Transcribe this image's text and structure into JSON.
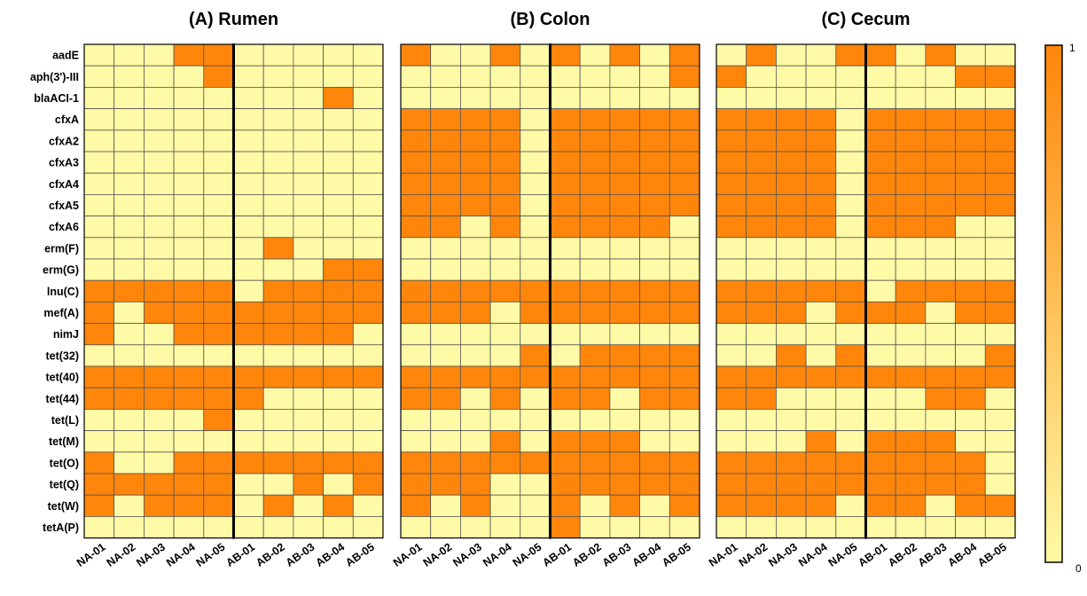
{
  "chart_data": {
    "type": "heatmap",
    "value_range": [
      0,
      1
    ],
    "colors": {
      "low": "#FFFAA5",
      "high": "#FF860A",
      "grid": "#555555",
      "divider": "#000000"
    },
    "colorbar": {
      "min_label": "0",
      "max_label": "1"
    },
    "genes": [
      "aadE",
      "aph(3')-III",
      "blaACI-1",
      "cfxA",
      "cfxA2",
      "cfxA3",
      "cfxA4",
      "cfxA5",
      "cfxA6",
      "erm(F)",
      "erm(G)",
      "lnu(C)",
      "mef(A)",
      "nimJ",
      "tet(32)",
      "tet(40)",
      "tet(44)",
      "tet(L)",
      "tet(M)",
      "tet(O)",
      "tet(Q)",
      "tet(W)",
      "tetA(P)"
    ],
    "samples": [
      "NA-01",
      "NA-02",
      "NA-03",
      "NA-04",
      "NA-05",
      "AB-01",
      "AB-02",
      "AB-03",
      "AB-04",
      "AB-05"
    ],
    "panels": [
      {
        "title": "(A) Rumen",
        "matrix": [
          [
            0,
            0,
            0,
            1,
            1,
            0,
            0,
            0,
            0,
            0
          ],
          [
            0,
            0,
            0,
            0,
            1,
            0,
            0,
            0,
            0,
            0
          ],
          [
            0,
            0,
            0,
            0,
            0,
            0,
            0,
            0,
            1,
            0
          ],
          [
            0,
            0,
            0,
            0,
            0,
            0,
            0,
            0,
            0,
            0
          ],
          [
            0,
            0,
            0,
            0,
            0,
            0,
            0,
            0,
            0,
            0
          ],
          [
            0,
            0,
            0,
            0,
            0,
            0,
            0,
            0,
            0,
            0
          ],
          [
            0,
            0,
            0,
            0,
            0,
            0,
            0,
            0,
            0,
            0
          ],
          [
            0,
            0,
            0,
            0,
            0,
            0,
            0,
            0,
            0,
            0
          ],
          [
            0,
            0,
            0,
            0,
            0,
            0,
            0,
            0,
            0,
            0
          ],
          [
            0,
            0,
            0,
            0,
            0,
            0,
            1,
            0,
            0,
            0
          ],
          [
            0,
            0,
            0,
            0,
            0,
            0,
            0,
            0,
            1,
            1
          ],
          [
            1,
            1,
            1,
            1,
            1,
            0,
            1,
            1,
            1,
            1
          ],
          [
            1,
            0,
            1,
            1,
            1,
            1,
            1,
            1,
            1,
            1
          ],
          [
            1,
            0,
            0,
            1,
            1,
            1,
            1,
            1,
            1,
            0
          ],
          [
            0,
            0,
            0,
            0,
            0,
            0,
            0,
            0,
            0,
            0
          ],
          [
            1,
            1,
            1,
            1,
            1,
            1,
            1,
            1,
            1,
            1
          ],
          [
            1,
            1,
            1,
            1,
            1,
            1,
            0,
            0,
            0,
            0
          ],
          [
            0,
            0,
            0,
            0,
            1,
            0,
            0,
            0,
            0,
            0
          ],
          [
            0,
            0,
            0,
            0,
            0,
            0,
            0,
            0,
            0,
            0
          ],
          [
            1,
            0,
            0,
            1,
            1,
            1,
            1,
            1,
            1,
            1
          ],
          [
            1,
            1,
            1,
            1,
            1,
            0,
            0,
            1,
            0,
            1
          ],
          [
            1,
            0,
            1,
            1,
            1,
            0,
            1,
            0,
            1,
            0
          ],
          [
            0,
            0,
            0,
            0,
            0,
            0,
            0,
            0,
            0,
            0
          ]
        ]
      },
      {
        "title": "(B) Colon",
        "matrix": [
          [
            1,
            0,
            0,
            1,
            0,
            1,
            0,
            1,
            0,
            1
          ],
          [
            0,
            0,
            0,
            0,
            0,
            0,
            0,
            0,
            0,
            1
          ],
          [
            0,
            0,
            0,
            0,
            0,
            0,
            0,
            0,
            0,
            0
          ],
          [
            1,
            1,
            1,
            1,
            0,
            1,
            1,
            1,
            1,
            1
          ],
          [
            1,
            1,
            1,
            1,
            0,
            1,
            1,
            1,
            1,
            1
          ],
          [
            1,
            1,
            1,
            1,
            0,
            1,
            1,
            1,
            1,
            1
          ],
          [
            1,
            1,
            1,
            1,
            0,
            1,
            1,
            1,
            1,
            1
          ],
          [
            1,
            1,
            1,
            1,
            0,
            1,
            1,
            1,
            1,
            1
          ],
          [
            1,
            1,
            0,
            1,
            0,
            1,
            1,
            1,
            1,
            0
          ],
          [
            0,
            0,
            0,
            0,
            0,
            0,
            0,
            0,
            0,
            0
          ],
          [
            0,
            0,
            0,
            0,
            0,
            0,
            0,
            0,
            0,
            0
          ],
          [
            1,
            1,
            1,
            1,
            1,
            1,
            1,
            1,
            1,
            1
          ],
          [
            1,
            1,
            1,
            0,
            1,
            1,
            1,
            1,
            1,
            1
          ],
          [
            0,
            0,
            0,
            0,
            0,
            0,
            0,
            0,
            0,
            0
          ],
          [
            0,
            0,
            0,
            0,
            1,
            0,
            1,
            1,
            1,
            1
          ],
          [
            1,
            1,
            1,
            1,
            1,
            1,
            1,
            1,
            1,
            1
          ],
          [
            1,
            1,
            0,
            1,
            0,
            1,
            1,
            0,
            1,
            1
          ],
          [
            0,
            0,
            0,
            0,
            0,
            0,
            0,
            0,
            0,
            0
          ],
          [
            0,
            0,
            0,
            1,
            0,
            1,
            1,
            1,
            0,
            0
          ],
          [
            1,
            1,
            1,
            1,
            1,
            1,
            1,
            1,
            1,
            1
          ],
          [
            1,
            1,
            1,
            0,
            0,
            1,
            1,
            1,
            1,
            1
          ],
          [
            1,
            0,
            1,
            0,
            0,
            1,
            0,
            1,
            0,
            1
          ],
          [
            0,
            0,
            0,
            0,
            0,
            1,
            0,
            0,
            0,
            0
          ]
        ]
      },
      {
        "title": "(C) Cecum",
        "matrix": [
          [
            0,
            1,
            0,
            0,
            1,
            1,
            0,
            1,
            0,
            0
          ],
          [
            1,
            0,
            0,
            0,
            0,
            0,
            0,
            0,
            1,
            1
          ],
          [
            0,
            0,
            0,
            0,
            0,
            0,
            0,
            0,
            0,
            0
          ],
          [
            1,
            1,
            1,
            1,
            0,
            1,
            1,
            1,
            1,
            1
          ],
          [
            1,
            1,
            1,
            1,
            0,
            1,
            1,
            1,
            1,
            1
          ],
          [
            1,
            1,
            1,
            1,
            0,
            1,
            1,
            1,
            1,
            1
          ],
          [
            1,
            1,
            1,
            1,
            0,
            1,
            1,
            1,
            1,
            1
          ],
          [
            1,
            1,
            1,
            1,
            0,
            1,
            1,
            1,
            1,
            1
          ],
          [
            1,
            1,
            1,
            1,
            0,
            1,
            1,
            1,
            0,
            0
          ],
          [
            0,
            0,
            0,
            0,
            0,
            0,
            0,
            0,
            0,
            0
          ],
          [
            0,
            0,
            0,
            0,
            0,
            0,
            0,
            0,
            0,
            0
          ],
          [
            1,
            1,
            1,
            1,
            1,
            0,
            1,
            1,
            1,
            1
          ],
          [
            1,
            1,
            1,
            0,
            1,
            1,
            1,
            0,
            1,
            1
          ],
          [
            0,
            0,
            0,
            0,
            0,
            0,
            0,
            0,
            0,
            0
          ],
          [
            0,
            0,
            1,
            0,
            1,
            0,
            0,
            0,
            0,
            1
          ],
          [
            1,
            1,
            1,
            1,
            1,
            1,
            1,
            1,
            1,
            1
          ],
          [
            1,
            1,
            0,
            0,
            0,
            0,
            0,
            1,
            1,
            0
          ],
          [
            0,
            0,
            0,
            0,
            0,
            0,
            0,
            0,
            0,
            0
          ],
          [
            0,
            0,
            0,
            1,
            0,
            1,
            1,
            1,
            0,
            0
          ],
          [
            1,
            1,
            1,
            1,
            1,
            1,
            1,
            1,
            1,
            0
          ],
          [
            1,
            1,
            1,
            1,
            1,
            1,
            1,
            1,
            1,
            0
          ],
          [
            1,
            1,
            1,
            1,
            0,
            1,
            1,
            0,
            1,
            1
          ],
          [
            0,
            0,
            0,
            0,
            0,
            0,
            0,
            0,
            0,
            0
          ]
        ]
      }
    ]
  }
}
